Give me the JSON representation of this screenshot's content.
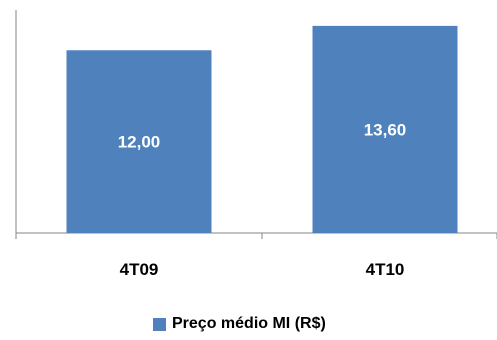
{
  "chart_data": {
    "type": "bar",
    "categories": [
      "4T09",
      "4T10"
    ],
    "series": [
      {
        "name": "Preço médio MI (R$)",
        "values": [
          12.0,
          13.6
        ],
        "labels": [
          "12,00",
          "13,60"
        ]
      }
    ],
    "ylim": [
      0,
      15.3
    ],
    "grid": false,
    "legend": "bottom",
    "colors": {
      "bar": "#4F81BD",
      "axis": "#868686",
      "data_label": "#FFFFFF",
      "text": "#000000"
    }
  }
}
